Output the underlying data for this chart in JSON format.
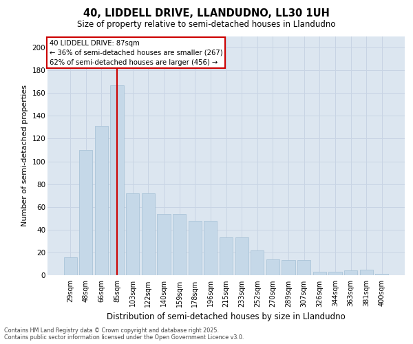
{
  "title1": "40, LIDDELL DRIVE, LLANDUDNO, LL30 1UH",
  "title2": "Size of property relative to semi-detached houses in Llandudno",
  "xlabel": "Distribution of semi-detached houses by size in Llandudno",
  "ylabel": "Number of semi-detached properties",
  "categories": [
    "29sqm",
    "48sqm",
    "66sqm",
    "85sqm",
    "103sqm",
    "122sqm",
    "140sqm",
    "159sqm",
    "178sqm",
    "196sqm",
    "215sqm",
    "233sqm",
    "252sqm",
    "270sqm",
    "289sqm",
    "307sqm",
    "326sqm",
    "344sqm",
    "363sqm",
    "381sqm",
    "400sqm"
  ],
  "values": [
    16,
    110,
    131,
    167,
    72,
    72,
    54,
    54,
    48,
    48,
    33,
    33,
    22,
    14,
    13,
    13,
    3,
    3,
    4,
    5,
    1
  ],
  "bar_color": "#c5d8e8",
  "bar_edgecolor": "#aac4d8",
  "vline_index": 3,
  "vline_color": "#cc0000",
  "annotation_text": "40 LIDDELL DRIVE: 87sqm\n← 36% of semi-detached houses are smaller (267)\n62% of semi-detached houses are larger (456) →",
  "annotation_box_facecolor": "#ffffff",
  "annotation_box_edgecolor": "#cc0000",
  "ylim": [
    0,
    210
  ],
  "yticks": [
    0,
    20,
    40,
    60,
    80,
    100,
    120,
    140,
    160,
    180,
    200
  ],
  "grid_color": "#c8d4e4",
  "bg_color": "#dce6f0",
  "footer": "Contains HM Land Registry data © Crown copyright and database right 2025.\nContains public sector information licensed under the Open Government Licence v3.0."
}
